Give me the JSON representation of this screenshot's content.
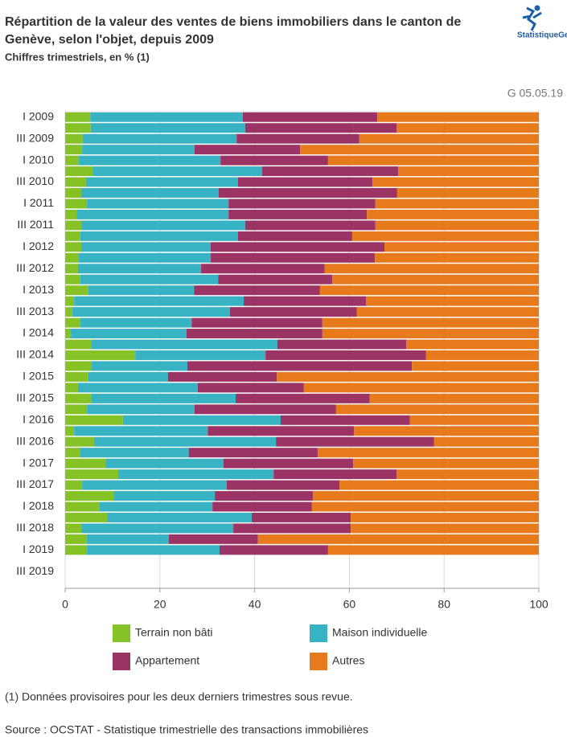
{
  "logo": "StatistiqueGenève",
  "chart_data": {
    "type": "stacked_barh",
    "title": "Répartition de la valeur des ventes de biens immobiliers dans le canton de Genève, selon l'objet, depuis 2009",
    "subtitle": "Chiffres trimestriels, en % (1)",
    "code": "G 05.05.19",
    "note": "(1) Données provisoires pour les deux derniers trimestres sous revue.",
    "source": "Source : OCSTAT - Statistique trimestrielle des transactions immobilières",
    "categories": [
      "I 2009",
      null,
      "III 2009",
      null,
      "I 2010",
      null,
      "III 2010",
      null,
      "I 2011",
      null,
      "III 2011",
      null,
      "I 2012",
      null,
      "III 2012",
      null,
      "I 2013",
      null,
      "III 2013",
      null,
      "I 2014",
      null,
      "III 2014",
      null,
      "I 2015",
      null,
      "III 2015",
      null,
      "I 2016",
      null,
      "III 2016",
      null,
      "I 2017",
      null,
      "III 2017",
      null,
      "I 2018",
      null,
      "III 2018",
      null,
      "I 2019",
      null,
      "III 2019"
    ],
    "series": [
      {
        "name": "Terrain non bâti",
        "color": "#84c225",
        "values": [
          5.3,
          5.4,
          3.7,
          3.6,
          2.9,
          5.8,
          4.4,
          3.4,
          4.6,
          2.4,
          3.4,
          3.2,
          3.4,
          2.9,
          2.7,
          3.2,
          4.9,
          1.9,
          1.5,
          3.2,
          1.2,
          5.6,
          14.8,
          5.6,
          4.9,
          2.7,
          5.6,
          4.6,
          12.2,
          1.9,
          6.1,
          3.1,
          8.5,
          11.2,
          3.6,
          10.2,
          7.3,
          8.9,
          3.4,
          4.6,
          4.6,
          null,
          null
        ]
      },
      {
        "name": "Maison individuelle",
        "color": "#37b3c4",
        "values": [
          32.2,
          32.6,
          32.5,
          23.7,
          29.9,
          35.8,
          32.1,
          29.0,
          29.9,
          32.1,
          34.6,
          33.3,
          27.3,
          27.8,
          26.0,
          29.1,
          22.3,
          35.8,
          33.3,
          23.5,
          24.4,
          39.2,
          27.5,
          20.2,
          16.8,
          25.3,
          30.4,
          22.7,
          33.3,
          28.2,
          38.4,
          23.0,
          24.9,
          32.8,
          30.5,
          21.4,
          23.8,
          30.5,
          32.1,
          17.3,
          28.0,
          null,
          null
        ]
      },
      {
        "name": "Appartement",
        "color": "#9b3465",
        "values": [
          28.4,
          32.0,
          25.9,
          22.3,
          22.7,
          28.7,
          28.4,
          37.7,
          31.0,
          29.2,
          27.5,
          24.1,
          36.7,
          34.7,
          26.1,
          24.1,
          26.6,
          25.8,
          26.8,
          27.6,
          28.7,
          27.2,
          33.9,
          47.4,
          23.0,
          22.4,
          28.3,
          29.9,
          27.3,
          30.9,
          33.4,
          27.2,
          27.4,
          26.0,
          23.8,
          20.7,
          21.0,
          20.9,
          24.8,
          18.8,
          22.9,
          null,
          null
        ]
      },
      {
        "name": "Autres",
        "color": "#e77a1d",
        "values": [
          34.1,
          30.0,
          37.9,
          50.4,
          44.5,
          29.7,
          35.1,
          29.9,
          34.5,
          36.3,
          34.5,
          39.4,
          32.6,
          34.6,
          45.2,
          43.6,
          46.2,
          36.5,
          38.4,
          45.7,
          45.7,
          28.0,
          23.8,
          26.8,
          55.3,
          49.6,
          35.7,
          42.8,
          27.2,
          39.0,
          22.1,
          46.7,
          39.2,
          30.0,
          42.1,
          47.7,
          47.9,
          39.7,
          39.7,
          59.3,
          44.5,
          null,
          null
        ]
      }
    ],
    "xlim": [
      0,
      100
    ],
    "xticks": [
      0,
      20,
      40,
      60,
      80,
      100
    ],
    "grid": true
  }
}
